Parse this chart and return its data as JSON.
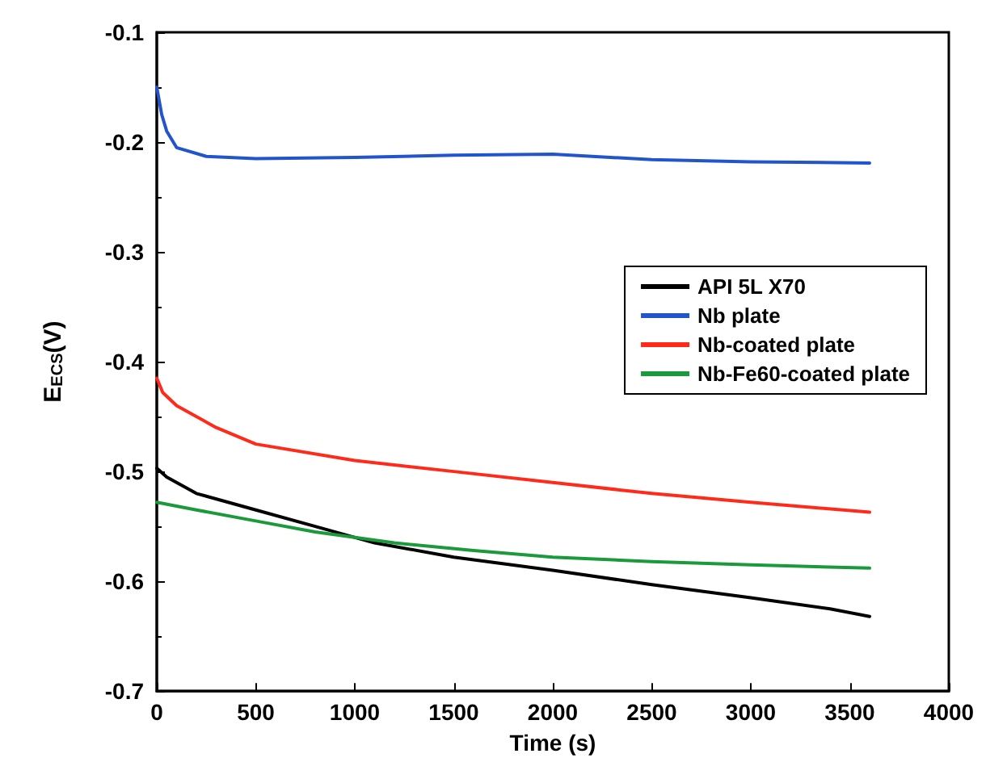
{
  "chart_data": {
    "type": "line",
    "xlabel": "Time (s)",
    "ylabel": "E$_{ECS}$(V)",
    "xlim": [
      0,
      4000
    ],
    "xticks": [
      0,
      500,
      1000,
      1500,
      2000,
      2500,
      3000,
      3500,
      4000
    ],
    "ylim": [
      -0.7,
      -0.1
    ],
    "yticks": [
      -0.7,
      -0.6,
      -0.5,
      -0.4,
      -0.3,
      -0.2,
      -0.1
    ],
    "grid": false,
    "legend": "right",
    "marker": "none",
    "line_style": "solid",
    "series": [
      {
        "name": "API 5L X70",
        "color": "#000000",
        "x": [
          0,
          50,
          200,
          500,
          800,
          1100,
          1500,
          2000,
          2500,
          3000,
          3400,
          3600
        ],
        "values": [
          -0.497,
          -0.505,
          -0.52,
          -0.535,
          -0.55,
          -0.565,
          -0.578,
          -0.59,
          -0.603,
          -0.615,
          -0.625,
          -0.632
        ]
      },
      {
        "name": "Nb plate",
        "color": "#2255cc",
        "x": [
          0,
          25,
          50,
          100,
          250,
          500,
          1000,
          1500,
          2000,
          2500,
          3000,
          3600
        ],
        "values": [
          -0.15,
          -0.175,
          -0.19,
          -0.205,
          -0.213,
          -0.215,
          -0.214,
          -0.212,
          -0.211,
          -0.216,
          -0.218,
          -0.219
        ]
      },
      {
        "name": "Nb-coated plate",
        "color": "#ff2a1a",
        "x": [
          0,
          30,
          100,
          300,
          500,
          1000,
          1500,
          2000,
          2500,
          3000,
          3600
        ],
        "values": [
          -0.415,
          -0.428,
          -0.44,
          -0.46,
          -0.475,
          -0.49,
          -0.5,
          -0.51,
          -0.52,
          -0.528,
          -0.537
        ]
      },
      {
        "name": "Nb-Fe60-coated plate",
        "color": "#1a9a3a",
        "x": [
          0,
          200,
          500,
          800,
          1200,
          1600,
          2000,
          2500,
          3000,
          3600
        ],
        "values": [
          -0.528,
          -0.535,
          -0.545,
          -0.555,
          -0.565,
          -0.572,
          -0.578,
          -0.582,
          -0.585,
          -0.588
        ]
      }
    ]
  }
}
